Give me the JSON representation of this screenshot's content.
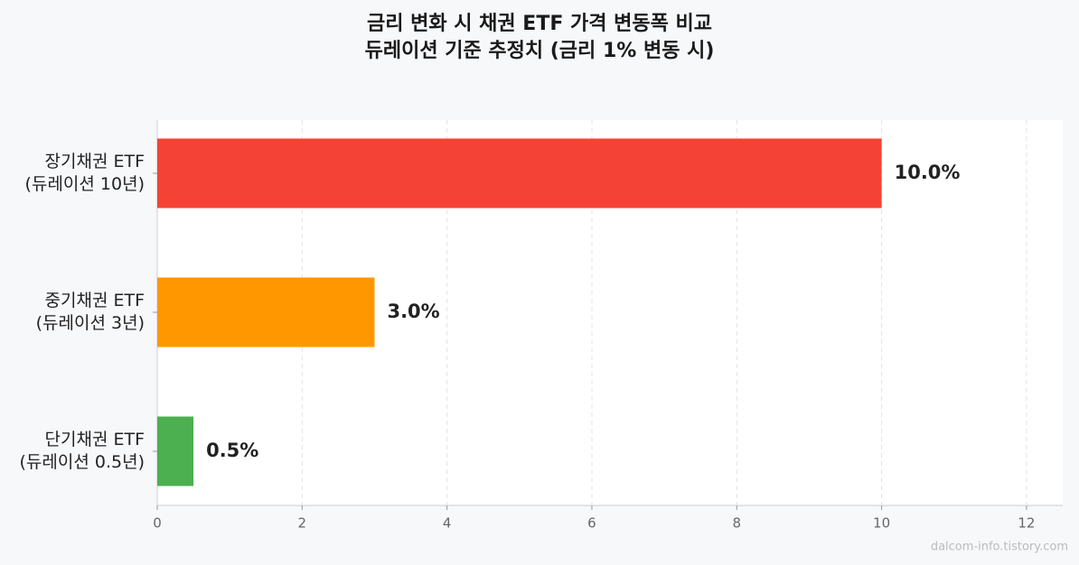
{
  "chart_data": {
    "type": "bar",
    "orientation": "horizontal",
    "title": "금리 변화 시 채권 ETF 가격 변동폭 비교",
    "subtitle": "듀레이션 기준 추정치 (금리 1% 변동 시)",
    "categories": [
      "장기채권 ETF\n(듀레이션 10년)",
      "중기채권 ETF\n(듀레이션 3년)",
      "단기채권 ETF\n(듀레이션 0.5년)"
    ],
    "values": [
      10.0,
      3.0,
      0.5
    ],
    "value_labels": [
      "10.0%",
      "3.0%",
      "0.5%"
    ],
    "colors": [
      "#f44336",
      "#ff9800",
      "#4caf50"
    ],
    "xlim": [
      0,
      12.5
    ],
    "xticks": [
      0,
      2,
      4,
      6,
      8,
      10,
      12
    ],
    "grid": true,
    "watermark": "dalcom-info.tistory.com"
  }
}
